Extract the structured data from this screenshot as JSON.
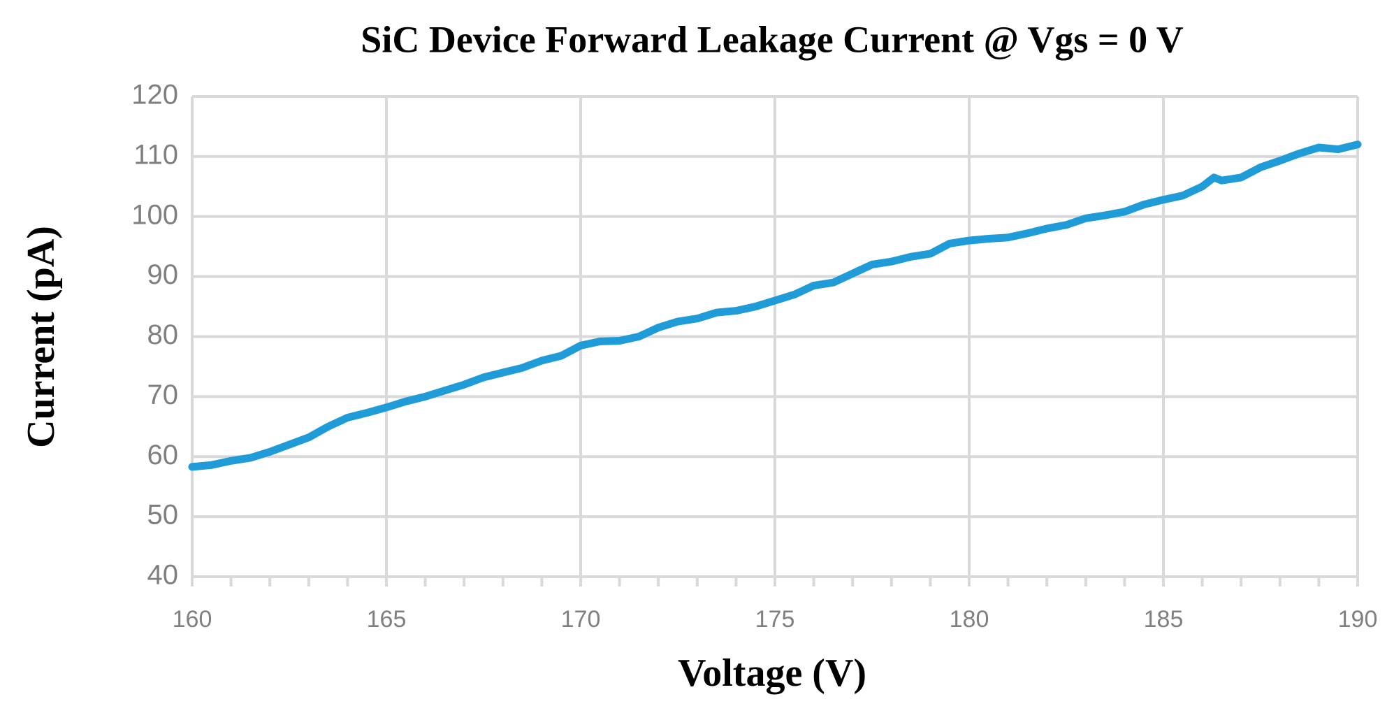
{
  "chart_data": {
    "type": "line",
    "title": "SiC Device Forward Leakage Current @ Vgs = 0 V",
    "x_label": "Voltage (V)",
    "y_label": "Current (pA)",
    "x": [
      160,
      160.5,
      161,
      161.5,
      162,
      162.5,
      163,
      163.5,
      164,
      164.5,
      165,
      165.5,
      166,
      166.5,
      167,
      167.5,
      168,
      168.5,
      169,
      169.5,
      170,
      170.5,
      171,
      171.5,
      172,
      172.5,
      173,
      173.5,
      174,
      174.5,
      175,
      175.5,
      176,
      176.5,
      177,
      177.5,
      178,
      178.5,
      179,
      179.5,
      180,
      180.5,
      181,
      181.5,
      182,
      182.5,
      183,
      183.5,
      184,
      184.5,
      185,
      185.5,
      186,
      186.3,
      186.5,
      187,
      187.5,
      188,
      188.5,
      189,
      189.5,
      190
    ],
    "series": [
      {
        "color": "#1f9bd7",
        "values": [
          58.3,
          58.6,
          59.3,
          59.8,
          60.8,
          62,
          63.2,
          65,
          66.5,
          67.3,
          68.2,
          69.2,
          70,
          71,
          72,
          73.2,
          74,
          74.8,
          76,
          76.8,
          78.5,
          79.2,
          79.3,
          80,
          81.5,
          82.5,
          83,
          84,
          84.3,
          85,
          86,
          87,
          88.5,
          89,
          90.5,
          92,
          92.5,
          93.3,
          93.8,
          95.5,
          96,
          96.3,
          96.5,
          97.2,
          98,
          98.6,
          99.7,
          100.2,
          100.8,
          102,
          102.8,
          103.5,
          105,
          106.5,
          106,
          106.5,
          108.2,
          109.3,
          110.5,
          111.5,
          111.2,
          112
        ]
      }
    ],
    "xlim": [
      160,
      190
    ],
    "xticks": [
      160,
      165,
      170,
      175,
      180,
      185,
      190
    ],
    "xminorticks": [
      160,
      161,
      162,
      163,
      164,
      165,
      166,
      167,
      168,
      169,
      170,
      171,
      172,
      173,
      174,
      175,
      176,
      177,
      178,
      179,
      180,
      181,
      182,
      183,
      184,
      185,
      186,
      187,
      188,
      189,
      190
    ],
    "ylim": [
      40,
      120
    ],
    "yticks": [
      40,
      50,
      60,
      70,
      80,
      90,
      100,
      110,
      120
    ],
    "grid": true
  }
}
